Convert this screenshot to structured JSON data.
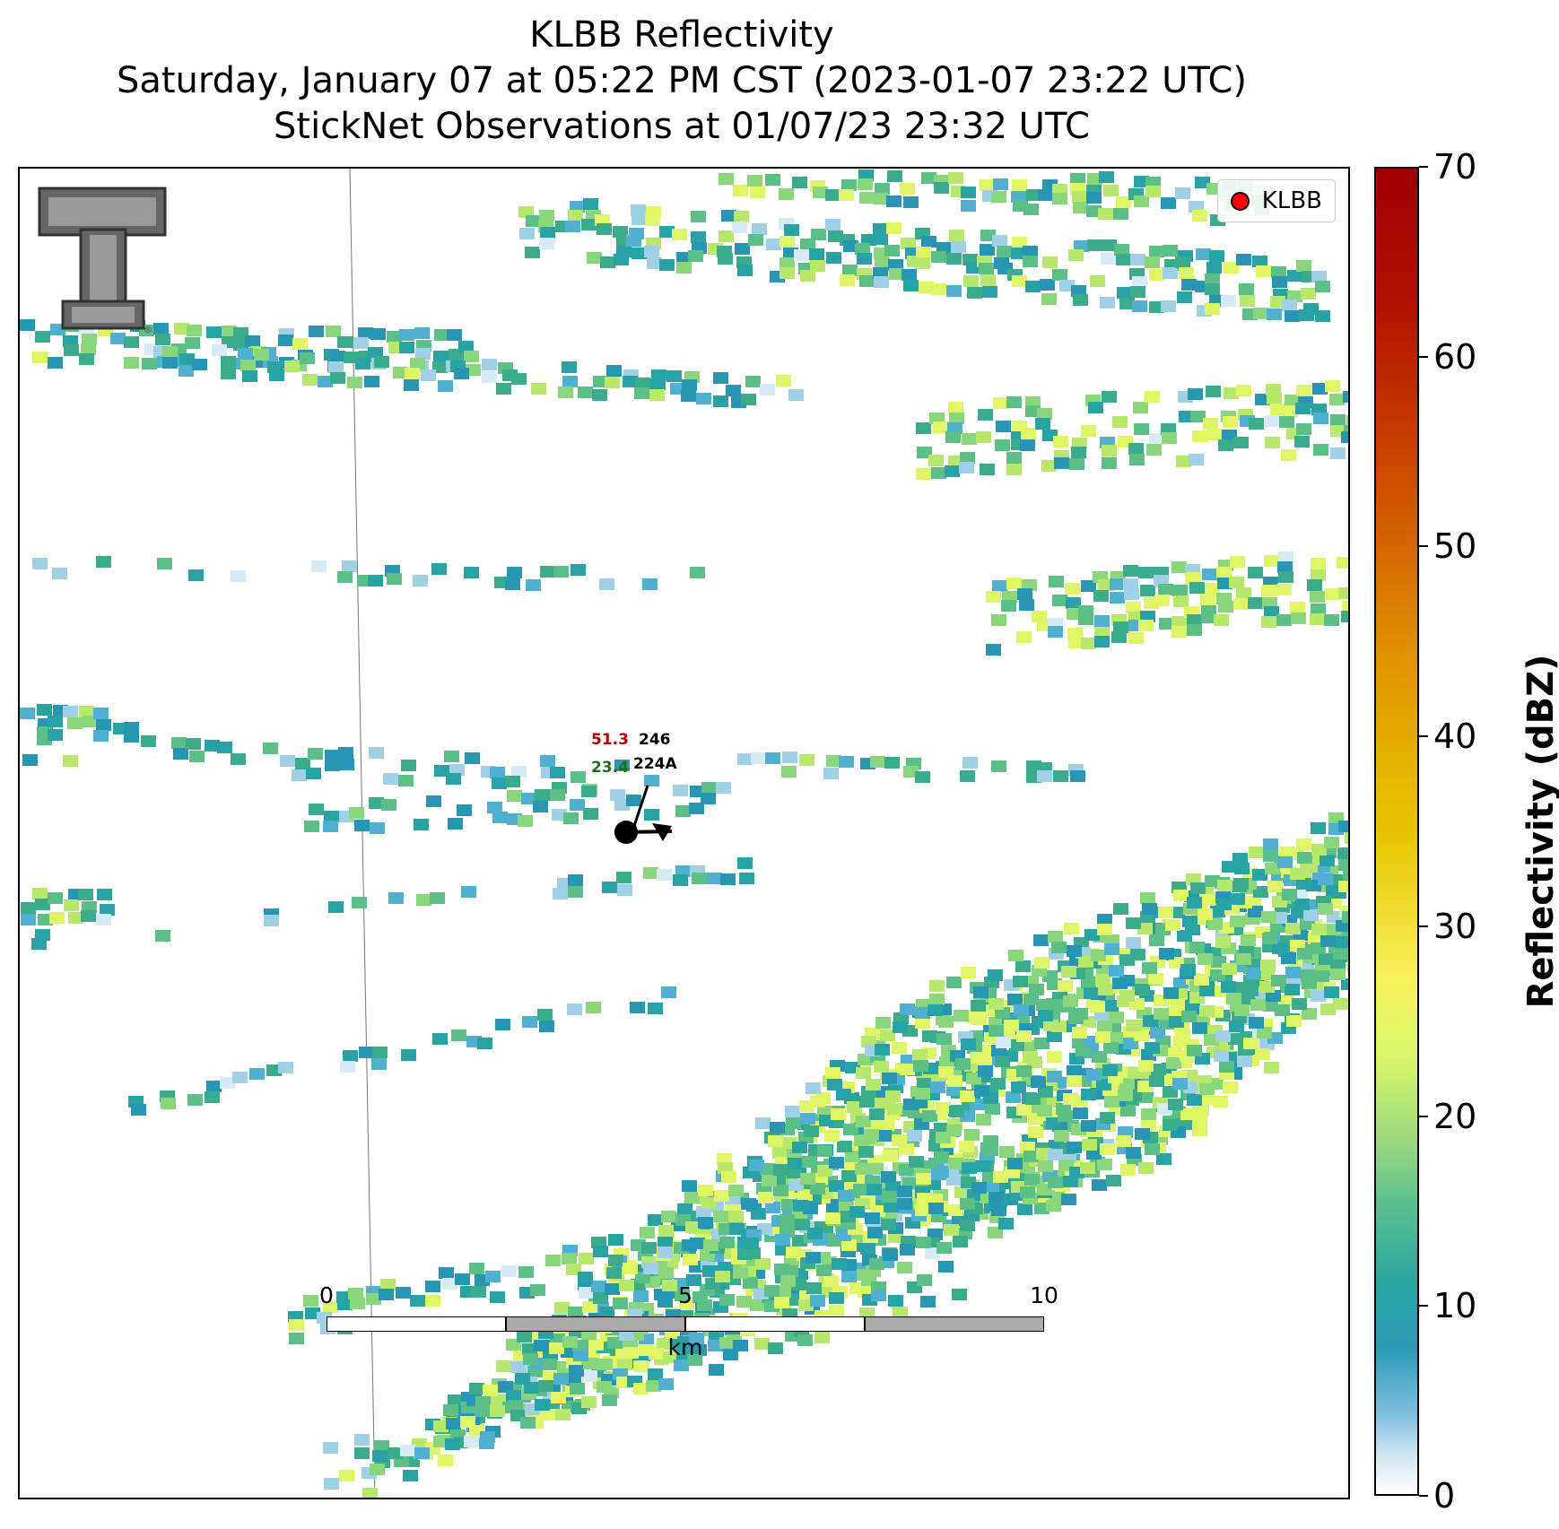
{
  "title": {
    "line1": "KLBB Reflectivity",
    "line2": "Saturday, January 07 at 05:22 PM CST (2023-01-07 23:22 UTC)",
    "line3": "StickNet Observations at 01/07/23 23:32 UTC"
  },
  "legend": {
    "label": "KLBB",
    "marker_color": "#ff0000"
  },
  "station": {
    "temperature": "51.3",
    "pressure": "246",
    "dewpoint": "23.4",
    "station_id": "224A",
    "temp_color": "#b00000",
    "dew_color": "#1a6e1a"
  },
  "scalebar": {
    "ticks": [
      "0",
      "5",
      "10"
    ],
    "unit": "km"
  },
  "colorbar": {
    "label": "Reflectivity (dBZ)",
    "ticks": [
      "0",
      "10",
      "20",
      "30",
      "40",
      "50",
      "60",
      "70"
    ],
    "range": [
      0,
      70
    ]
  },
  "palette": [
    "#d6ebf5",
    "#9fd0e6",
    "#4fb0cf",
    "#2696b3",
    "#28a2a4",
    "#3aab8c",
    "#5cbf85",
    "#8ad67a",
    "#b7e86c",
    "#e0f565"
  ]
}
